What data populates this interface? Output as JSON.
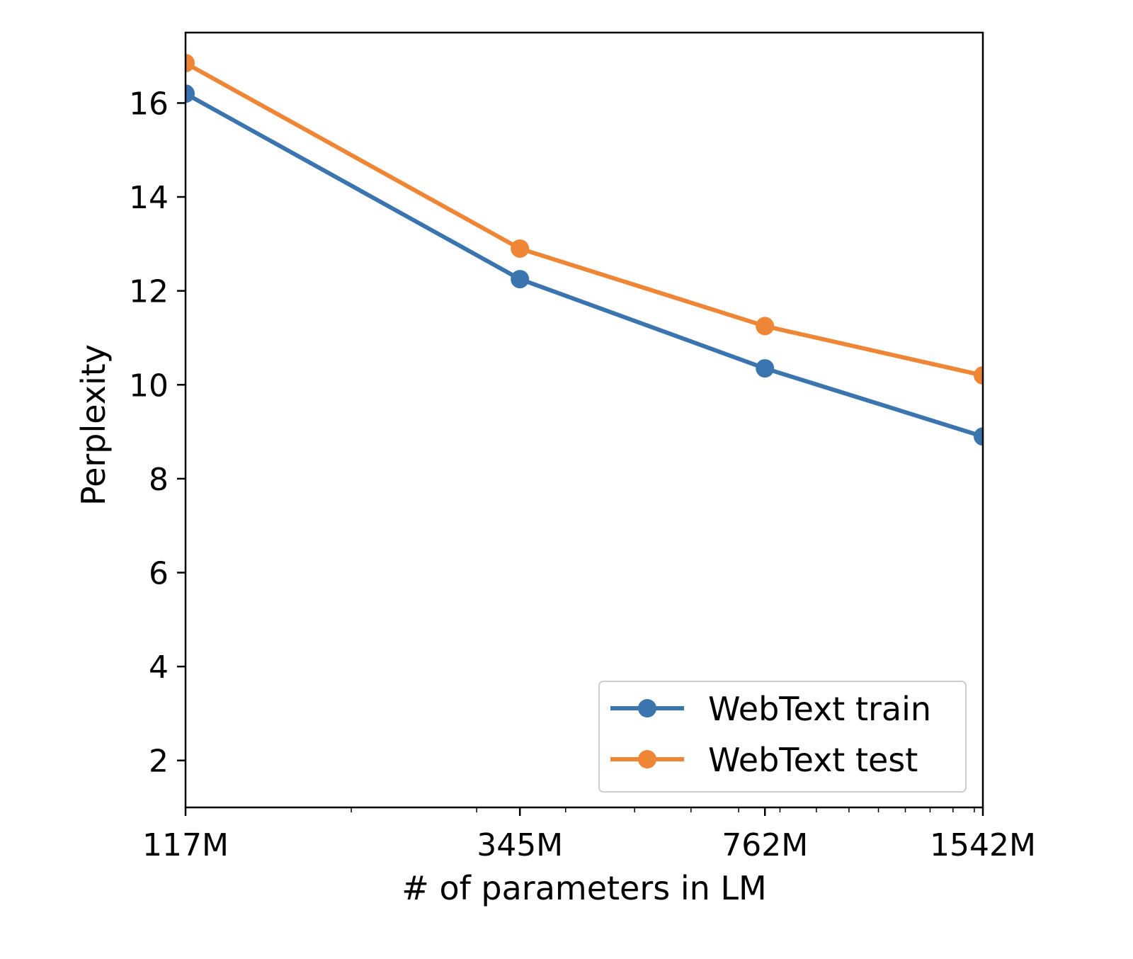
{
  "chart_data": {
    "type": "line",
    "title": "",
    "xlabel": "# of parameters in LM",
    "ylabel": "Perplexity",
    "x_scale": "log",
    "x": [
      117,
      345,
      762,
      1542
    ],
    "x_tick_labels": [
      "117M",
      "345M",
      "762M",
      "1542M"
    ],
    "xlim": [
      117,
      1542
    ],
    "ylim": [
      1.0,
      17.5
    ],
    "y_ticks": [
      2,
      4,
      6,
      8,
      10,
      12,
      14,
      16
    ],
    "y_tick_labels": [
      "2",
      "4",
      "6",
      "8",
      "10",
      "12",
      "14",
      "16"
    ],
    "grid": false,
    "legend_position": "lower right",
    "series": [
      {
        "name": "WebText train",
        "color": "#3b75af",
        "values": [
          16.2,
          12.25,
          10.35,
          8.9
        ]
      },
      {
        "name": "WebText test",
        "color": "#ef8636",
        "values": [
          16.85,
          12.9,
          11.25,
          10.2
        ]
      }
    ]
  }
}
